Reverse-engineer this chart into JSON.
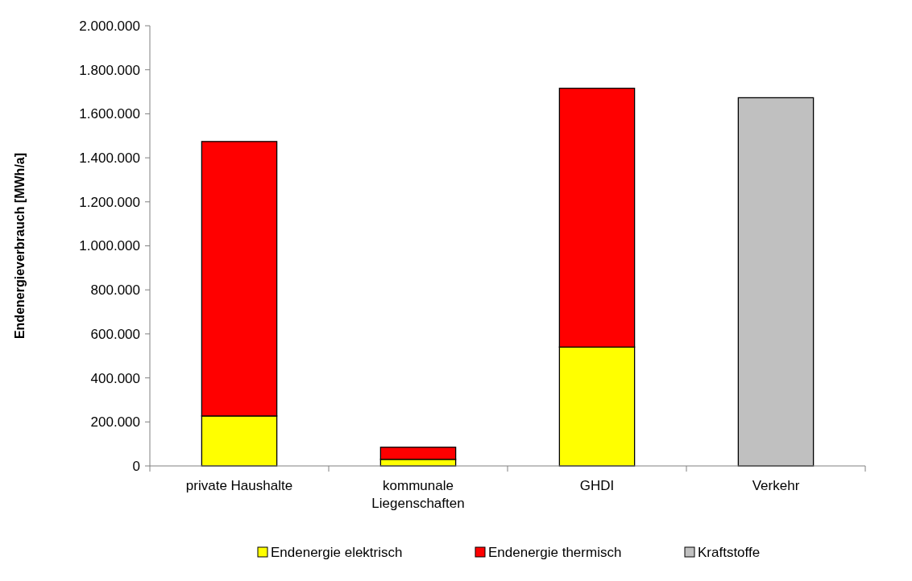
{
  "chart_data": {
    "type": "bar",
    "stacked": true,
    "ylabel": "Endenergieverbrauch  [MWh/a]",
    "categories": [
      "private Haushalte",
      "kommunale Liegenschaften",
      "GHDI",
      "Verkehr"
    ],
    "series": [
      {
        "name": "Endenergie elektrisch",
        "color": "#ffff00",
        "values": [
          227000,
          30000,
          540000,
          null
        ]
      },
      {
        "name": "Endenergie thermisch",
        "color": "#ff0000",
        "values": [
          1247000,
          55000,
          1176000,
          null
        ]
      },
      {
        "name": "Kraftstoffe",
        "color": "#c0c0c0",
        "values": [
          null,
          null,
          null,
          1673000
        ]
      }
    ],
    "ylim": [
      0,
      2000000
    ],
    "yticks": [
      {
        "value": 0,
        "label": "0"
      },
      {
        "value": 200000,
        "label": "200.000"
      },
      {
        "value": 400000,
        "label": "400.000"
      },
      {
        "value": 600000,
        "label": "600.000"
      },
      {
        "value": 800000,
        "label": "800.000"
      },
      {
        "value": 1000000,
        "label": "1.000.000"
      },
      {
        "value": 1200000,
        "label": "1.200.000"
      },
      {
        "value": 1400000,
        "label": "1.400.000"
      },
      {
        "value": 1600000,
        "label": "1.600.000"
      },
      {
        "value": 1800000,
        "label": "1.800.000"
      },
      {
        "value": 2000000,
        "label": "2.000.000"
      }
    ],
    "grid": false,
    "legend": "bottom"
  }
}
